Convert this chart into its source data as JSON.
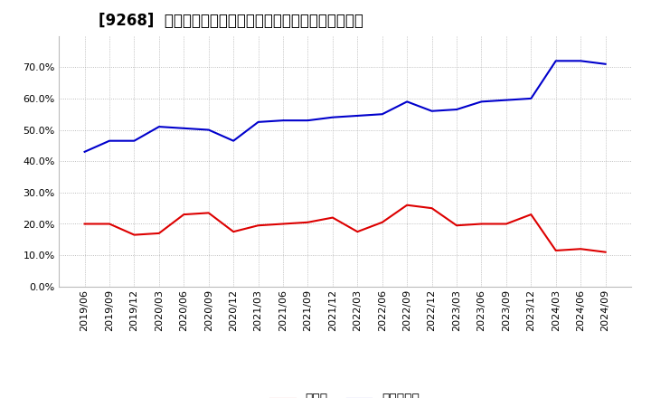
{
  "title": "[9268]  現預金、有利子負債の総資産に対する比率の推移",
  "x_labels": [
    "2019/06",
    "2019/09",
    "2019/12",
    "2020/03",
    "2020/06",
    "2020/09",
    "2020/12",
    "2021/03",
    "2021/06",
    "2021/09",
    "2021/12",
    "2022/03",
    "2022/06",
    "2022/09",
    "2022/12",
    "2023/03",
    "2023/06",
    "2023/09",
    "2023/12",
    "2024/03",
    "2024/06",
    "2024/09"
  ],
  "cash": [
    0.2,
    0.2,
    0.165,
    0.17,
    0.23,
    0.235,
    0.175,
    0.195,
    0.2,
    0.205,
    0.22,
    0.175,
    0.205,
    0.26,
    0.25,
    0.195,
    0.2,
    0.2,
    0.23,
    0.115,
    0.12,
    0.11
  ],
  "debt": [
    0.43,
    0.465,
    0.465,
    0.51,
    0.505,
    0.5,
    0.465,
    0.525,
    0.53,
    0.53,
    0.54,
    0.545,
    0.55,
    0.59,
    0.56,
    0.565,
    0.59,
    0.595,
    0.6,
    0.72,
    0.72,
    0.71
  ],
  "cash_color": "#dd0000",
  "debt_color": "#0000cc",
  "bg_color": "#ffffff",
  "plot_bg_color": "#ffffff",
  "grid_color": "#999999",
  "ylim": [
    0.0,
    0.8
  ],
  "yticks": [
    0.0,
    0.1,
    0.2,
    0.3,
    0.4,
    0.5,
    0.6,
    0.7
  ],
  "legend_cash": "現預金",
  "legend_debt": "有利子負債",
  "title_fontsize": 12,
  "tick_fontsize": 8,
  "legend_fontsize": 10
}
